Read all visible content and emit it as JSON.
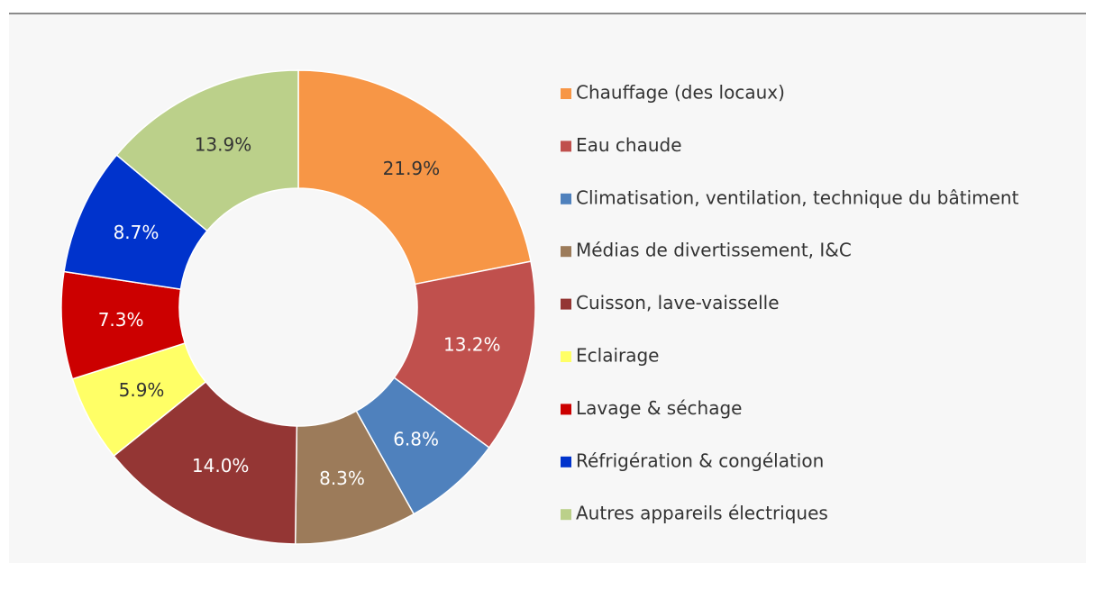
{
  "chart_data": {
    "type": "donut",
    "categories": [
      "Chauffage (des locaux)",
      "Eau chaude",
      "Climatisation, ventilation, technique du bâtiment",
      "Médias de divertissement, I&C",
      "Cuisson, lave-vaisselle",
      "Eclairage",
      "Lavage & séchage",
      "Réfrigération & congélation",
      "Autres appareils électriques"
    ],
    "values": [
      21.9,
      13.2,
      6.8,
      8.3,
      14.0,
      5.9,
      7.3,
      8.7,
      13.9
    ],
    "value_labels": [
      "21.9%",
      "13.2%",
      "6.8%",
      "8.3%",
      "14.0%",
      "5.9%",
      "7.3%",
      "8.7%",
      "13.9%"
    ],
    "colors": [
      "#f79646",
      "#c0504d",
      "#4f81bd",
      "#9c7b5a",
      "#943634",
      "#ffff66",
      "#cc0000",
      "#0033cc",
      "#bbd08a"
    ],
    "legend": "right"
  }
}
